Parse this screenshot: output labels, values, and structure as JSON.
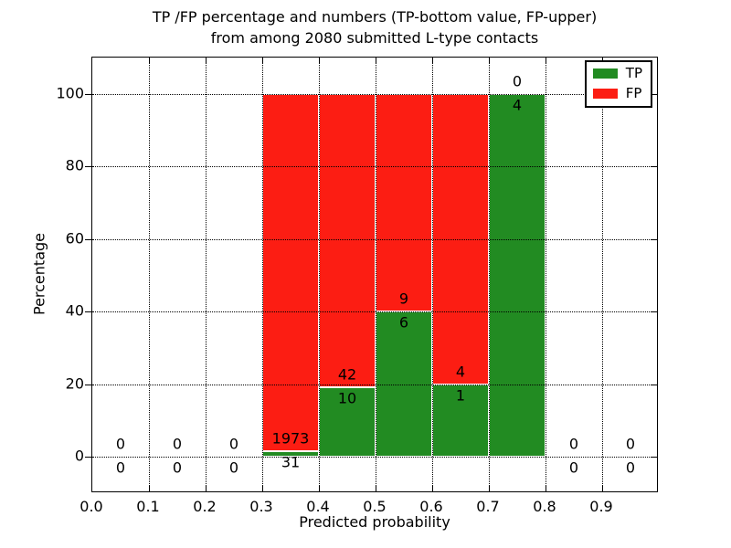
{
  "chart_data": {
    "type": "bar",
    "stacked": true,
    "orientation": "vertical",
    "title_lines": [
      "TP /FP percentage and numbers (TP-bottom value, FP-upper)",
      "from among 2080 submitted L-type contacts"
    ],
    "xlabel": "Predicted probability",
    "ylabel": "Percentage",
    "xlim": [
      0.0,
      1.0
    ],
    "ylim": [
      -10,
      110
    ],
    "grid": true,
    "grid_style": "dotted black, drawn above bars",
    "colors": {
      "tp": "#228b22",
      "fp": "#fc1d13"
    },
    "legend": {
      "position": "upper right",
      "entries": [
        {
          "label": "TP",
          "color": "#228b22"
        },
        {
          "label": "FP",
          "color": "#fc1d13"
        }
      ]
    },
    "xticks": [
      {
        "value": 0.0,
        "label": "0.0"
      },
      {
        "value": 0.1,
        "label": "0.1"
      },
      {
        "value": 0.2,
        "label": "0.2"
      },
      {
        "value": 0.3,
        "label": "0.3"
      },
      {
        "value": 0.4,
        "label": "0.4"
      },
      {
        "value": 0.5,
        "label": "0.5"
      },
      {
        "value": 0.6,
        "label": "0.6"
      },
      {
        "value": 0.7,
        "label": "0.7"
      },
      {
        "value": 0.8,
        "label": "0.8"
      },
      {
        "value": 0.9,
        "label": "0.9"
      }
    ],
    "yticks": [
      {
        "value": 0,
        "label": "0"
      },
      {
        "value": 20,
        "label": "20"
      },
      {
        "value": 40,
        "label": "40"
      },
      {
        "value": 60,
        "label": "60"
      },
      {
        "value": 80,
        "label": "80"
      },
      {
        "value": 100,
        "label": "100"
      }
    ],
    "bins": [
      {
        "x0": 0.0,
        "x1": 0.1,
        "tp": 0,
        "fp": 0,
        "tp_pct": 0,
        "fp_pct": 0
      },
      {
        "x0": 0.1,
        "x1": 0.2,
        "tp": 0,
        "fp": 0,
        "tp_pct": 0,
        "fp_pct": 0
      },
      {
        "x0": 0.2,
        "x1": 0.3,
        "tp": 0,
        "fp": 0,
        "tp_pct": 0,
        "fp_pct": 0
      },
      {
        "x0": 0.3,
        "x1": 0.4,
        "tp": 31,
        "fp": 1973,
        "tp_pct": 1.55,
        "fp_pct": 98.45
      },
      {
        "x0": 0.4,
        "x1": 0.5,
        "tp": 10,
        "fp": 42,
        "tp_pct": 19.23,
        "fp_pct": 80.77
      },
      {
        "x0": 0.5,
        "x1": 0.6,
        "tp": 6,
        "fp": 9,
        "tp_pct": 40.0,
        "fp_pct": 60.0
      },
      {
        "x0": 0.6,
        "x1": 0.7,
        "tp": 1,
        "fp": 4,
        "tp_pct": 20.0,
        "fp_pct": 80.0
      },
      {
        "x0": 0.7,
        "x1": 0.8,
        "tp": 4,
        "fp": 0,
        "tp_pct": 100.0,
        "fp_pct": 0.0
      },
      {
        "x0": 0.8,
        "x1": 0.9,
        "tp": 0,
        "fp": 0,
        "tp_pct": 0,
        "fp_pct": 0
      },
      {
        "x0": 0.9,
        "x1": 1.0,
        "tp": 0,
        "fp": 0,
        "tp_pct": 0,
        "fp_pct": 0
      }
    ]
  }
}
